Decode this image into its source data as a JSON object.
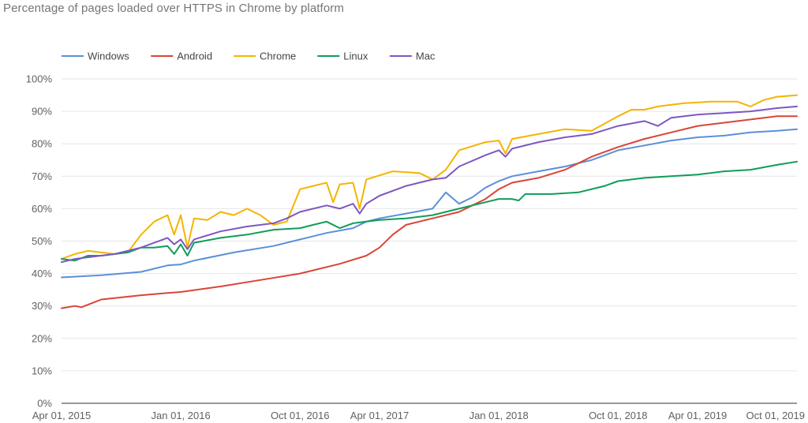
{
  "chart_data": {
    "type": "line",
    "title": "Percentage of pages loaded over HTTPS in Chrome by platform",
    "xlabel": "",
    "ylabel": "",
    "x_start": "Apr 01, 2015",
    "x_end": "Nov 15, 2019",
    "x_ticks": [
      "Apr 01, 2015",
      "Jan 01, 2016",
      "Oct 01, 2016",
      "Apr 01, 2017",
      "Jan 01, 2018",
      "Oct 01, 2018",
      "Apr 01, 2019",
      "Oct 01, 2019"
    ],
    "x_tick_month_offsets": [
      0,
      9,
      18,
      24,
      33,
      42,
      48,
      54
    ],
    "x_range_months": [
      0,
      55.5
    ],
    "y_ticks": [
      "0%",
      "10%",
      "20%",
      "30%",
      "40%",
      "50%",
      "60%",
      "70%",
      "80%",
      "90%",
      "100%"
    ],
    "ylim": [
      0,
      100
    ],
    "legend_position": "top-left",
    "series": [
      {
        "name": "Windows",
        "color": "#5b8fd9",
        "points": [
          [
            0,
            38.8
          ],
          [
            3,
            39.5
          ],
          [
            6,
            40.5
          ],
          [
            8,
            42.5
          ],
          [
            9,
            42.8
          ],
          [
            10,
            44.0
          ],
          [
            13,
            46.5
          ],
          [
            16,
            48.5
          ],
          [
            18,
            50.5
          ],
          [
            20,
            52.5
          ],
          [
            22,
            54.0
          ],
          [
            23,
            56.0
          ],
          [
            24,
            57.0
          ],
          [
            26,
            58.5
          ],
          [
            28,
            60.0
          ],
          [
            29,
            65.0
          ],
          [
            30,
            61.5
          ],
          [
            31,
            63.5
          ],
          [
            32,
            66.5
          ],
          [
            33,
            68.5
          ],
          [
            34,
            70.0
          ],
          [
            36,
            71.5
          ],
          [
            38,
            73.0
          ],
          [
            40,
            75.0
          ],
          [
            42,
            78.0
          ],
          [
            44,
            79.5
          ],
          [
            46,
            81.0
          ],
          [
            48,
            82.0
          ],
          [
            50,
            82.5
          ],
          [
            52,
            83.5
          ],
          [
            54,
            84.0
          ],
          [
            55.5,
            84.5
          ]
        ]
      },
      {
        "name": "Android",
        "color": "#db4437",
        "points": [
          [
            0,
            29.3
          ],
          [
            1,
            30.0
          ],
          [
            1.5,
            29.6
          ],
          [
            3,
            32.0
          ],
          [
            6,
            33.3
          ],
          [
            8,
            34.0
          ],
          [
            9,
            34.3
          ],
          [
            12,
            36.0
          ],
          [
            15,
            38.0
          ],
          [
            18,
            40.0
          ],
          [
            21,
            43.0
          ],
          [
            23,
            45.5
          ],
          [
            24,
            48.0
          ],
          [
            25,
            52.0
          ],
          [
            26,
            55.0
          ],
          [
            28,
            57.0
          ],
          [
            30,
            59.0
          ],
          [
            32,
            63.0
          ],
          [
            33,
            66.0
          ],
          [
            34,
            68.0
          ],
          [
            36,
            69.5
          ],
          [
            38,
            72.0
          ],
          [
            40,
            76.0
          ],
          [
            42,
            79.0
          ],
          [
            44,
            81.5
          ],
          [
            46,
            83.5
          ],
          [
            48,
            85.5
          ],
          [
            50,
            86.5
          ],
          [
            52,
            87.5
          ],
          [
            54,
            88.5
          ],
          [
            55.5,
            88.5
          ]
        ]
      },
      {
        "name": "Chrome",
        "color": "#f4b400",
        "points": [
          [
            0,
            44.5
          ],
          [
            1,
            46.0
          ],
          [
            2,
            47.0
          ],
          [
            3,
            46.5
          ],
          [
            4,
            46.0
          ],
          [
            5,
            46.5
          ],
          [
            6,
            52.0
          ],
          [
            7,
            56.0
          ],
          [
            8,
            58.0
          ],
          [
            8.5,
            52.0
          ],
          [
            9,
            58.0
          ],
          [
            9.5,
            48.0
          ],
          [
            10,
            57.0
          ],
          [
            11,
            56.5
          ],
          [
            12,
            59.0
          ],
          [
            13,
            58.0
          ],
          [
            14,
            60.0
          ],
          [
            15,
            58.0
          ],
          [
            16,
            55.0
          ],
          [
            17,
            56.0
          ],
          [
            18,
            66.0
          ],
          [
            19,
            67.0
          ],
          [
            20,
            68.0
          ],
          [
            20.5,
            62.0
          ],
          [
            21,
            67.5
          ],
          [
            22,
            68.0
          ],
          [
            22.5,
            60.0
          ],
          [
            23,
            69.0
          ],
          [
            25,
            71.5
          ],
          [
            27,
            71.0
          ],
          [
            28,
            69.0
          ],
          [
            29,
            72.0
          ],
          [
            30,
            78.0
          ],
          [
            32,
            80.5
          ],
          [
            33,
            81.0
          ],
          [
            33.5,
            77.0
          ],
          [
            34,
            81.5
          ],
          [
            36,
            83.0
          ],
          [
            38,
            84.5
          ],
          [
            40,
            84.0
          ],
          [
            42,
            88.5
          ],
          [
            43,
            90.5
          ],
          [
            44,
            90.5
          ],
          [
            45,
            91.5
          ],
          [
            47,
            92.5
          ],
          [
            49,
            93.0
          ],
          [
            51,
            93.0
          ],
          [
            52,
            91.5
          ],
          [
            53,
            93.5
          ],
          [
            54,
            94.5
          ],
          [
            55.5,
            95.0
          ]
        ]
      },
      {
        "name": "Linux",
        "color": "#0f9d58",
        "points": [
          [
            0,
            44.5
          ],
          [
            1,
            44.0
          ],
          [
            2,
            45.5
          ],
          [
            3,
            45.5
          ],
          [
            5,
            46.5
          ],
          [
            6,
            48.0
          ],
          [
            7,
            48.0
          ],
          [
            8,
            48.5
          ],
          [
            8.5,
            46.0
          ],
          [
            9,
            49.0
          ],
          [
            9.5,
            45.5
          ],
          [
            10,
            49.5
          ],
          [
            12,
            51.0
          ],
          [
            14,
            52.0
          ],
          [
            16,
            53.5
          ],
          [
            18,
            54.0
          ],
          [
            19,
            55.0
          ],
          [
            20,
            56.0
          ],
          [
            21,
            54.0
          ],
          [
            22,
            55.5
          ],
          [
            23,
            56.0
          ],
          [
            24,
            56.5
          ],
          [
            26,
            57.0
          ],
          [
            28,
            58.0
          ],
          [
            30,
            60.0
          ],
          [
            32,
            62.0
          ],
          [
            33,
            63.0
          ],
          [
            34,
            63.0
          ],
          [
            34.5,
            62.5
          ],
          [
            35,
            64.5
          ],
          [
            37,
            64.5
          ],
          [
            39,
            65.0
          ],
          [
            41,
            67.0
          ],
          [
            42,
            68.5
          ],
          [
            44,
            69.5
          ],
          [
            46,
            70.0
          ],
          [
            48,
            70.5
          ],
          [
            50,
            71.5
          ],
          [
            52,
            72.0
          ],
          [
            54,
            73.5
          ],
          [
            55.5,
            74.5
          ]
        ]
      },
      {
        "name": "Mac",
        "color": "#7e57c2",
        "points": [
          [
            0,
            43.5
          ],
          [
            1,
            44.5
          ],
          [
            2,
            45.0
          ],
          [
            4,
            46.0
          ],
          [
            6,
            48.0
          ],
          [
            7,
            49.5
          ],
          [
            8,
            51.0
          ],
          [
            8.5,
            49.0
          ],
          [
            9,
            50.5
          ],
          [
            9.5,
            47.5
          ],
          [
            10,
            50.5
          ],
          [
            12,
            53.0
          ],
          [
            14,
            54.5
          ],
          [
            16,
            55.5
          ],
          [
            17,
            57.0
          ],
          [
            18,
            59.0
          ],
          [
            20,
            61.0
          ],
          [
            21,
            60.0
          ],
          [
            22,
            61.5
          ],
          [
            22.5,
            58.5
          ],
          [
            23,
            61.5
          ],
          [
            24,
            64.0
          ],
          [
            26,
            67.0
          ],
          [
            28,
            69.0
          ],
          [
            29,
            69.5
          ],
          [
            30,
            73.0
          ],
          [
            32,
            76.5
          ],
          [
            33,
            78.0
          ],
          [
            33.5,
            76.0
          ],
          [
            34,
            78.5
          ],
          [
            36,
            80.5
          ],
          [
            38,
            82.0
          ],
          [
            40,
            83.0
          ],
          [
            42,
            85.5
          ],
          [
            44,
            87.0
          ],
          [
            45,
            85.5
          ],
          [
            46,
            88.0
          ],
          [
            48,
            89.0
          ],
          [
            50,
            89.5
          ],
          [
            52,
            90.0
          ],
          [
            54,
            91.0
          ],
          [
            55.5,
            91.5
          ]
        ]
      }
    ]
  }
}
